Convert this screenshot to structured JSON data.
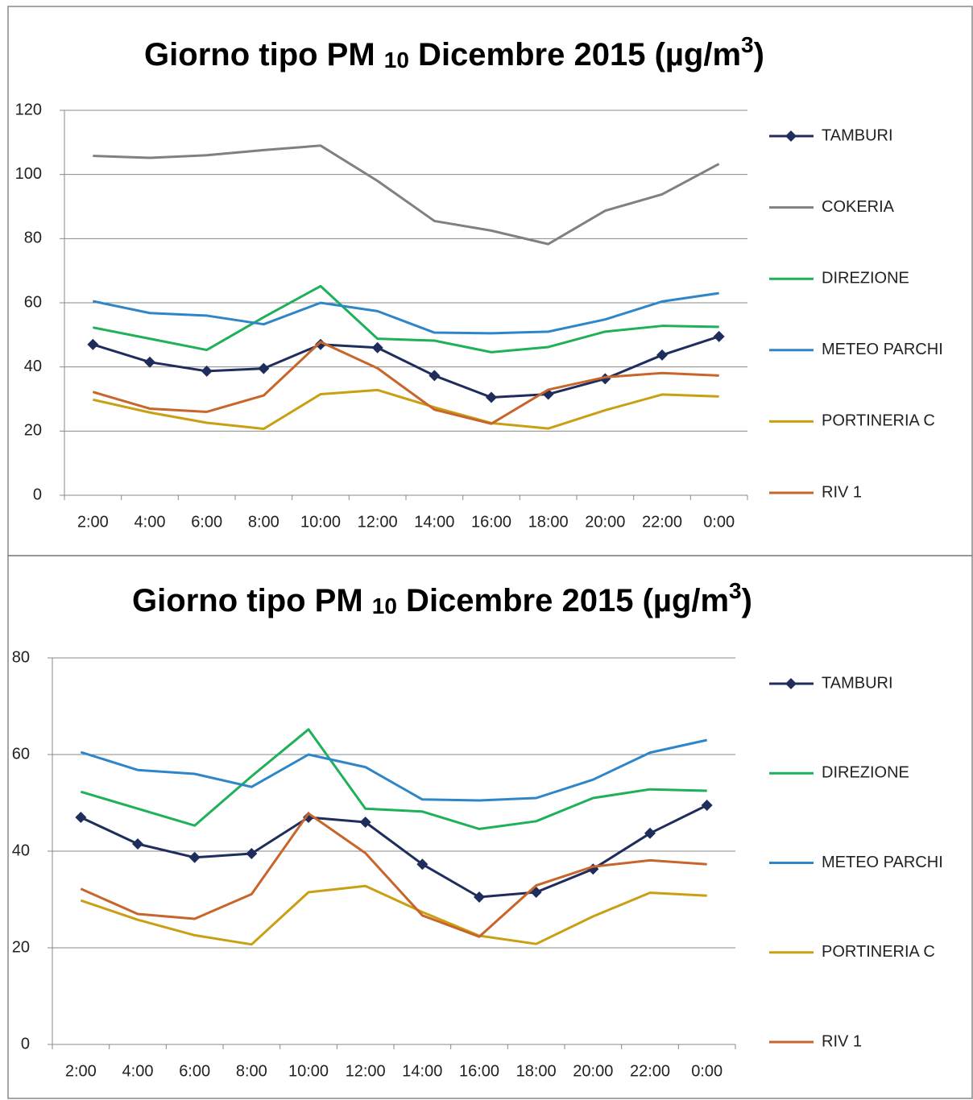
{
  "chart_data": [
    {
      "type": "line",
      "title": [
        "Giorno tipo PM ",
        "10",
        " Dicembre 2015 (µg/m",
        "3",
        ")"
      ],
      "categories": [
        "2:00",
        "4:00",
        "6:00",
        "8:00",
        "10:00",
        "12:00",
        "14:00",
        "16:00",
        "18:00",
        "20:00",
        "22:00",
        "0:00"
      ],
      "ylim": [
        0,
        120
      ],
      "yticks": [
        0,
        20,
        40,
        60,
        80,
        100,
        120
      ],
      "grid": true,
      "legend": "right",
      "series": [
        {
          "name": "TAMBURI",
          "color": "#1f2d5c",
          "marker": "diamond",
          "values": [
            47,
            41.5,
            38.7,
            39.5,
            47,
            46,
            37.3,
            30.5,
            31.5,
            36.3,
            43.7,
            49.5
          ]
        },
        {
          "name": "COKERIA",
          "color": "#808080",
          "values": [
            105.8,
            105.2,
            106,
            107.6,
            109,
            98,
            85.5,
            82.5,
            78.3,
            88.7,
            93.8,
            103.3
          ]
        },
        {
          "name": "DIREZIONE",
          "color": "#1eb15a",
          "values": [
            52.3,
            48.8,
            45.3,
            55.5,
            65.2,
            48.8,
            48.2,
            44.6,
            46.2,
            51,
            52.8,
            52.5
          ]
        },
        {
          "name": "METEO PARCHI",
          "color": "#2e86c8",
          "values": [
            60.5,
            56.8,
            56,
            53.3,
            60,
            57.4,
            50.7,
            50.5,
            51,
            54.8,
            60.4,
            63
          ]
        },
        {
          "name": "PORTINERIA C",
          "color": "#c9a013",
          "values": [
            29.8,
            25.8,
            22.6,
            20.7,
            31.5,
            32.8,
            27.4,
            22.5,
            20.8,
            26.5,
            31.4,
            30.8
          ]
        },
        {
          "name": "RIV 1",
          "color": "#c8652a",
          "values": [
            32.2,
            27,
            26,
            31.1,
            47.8,
            39.6,
            26.7,
            22.3,
            32.9,
            36.8,
            38.1,
            37.3
          ]
        }
      ]
    },
    {
      "type": "line",
      "title": [
        "Giorno tipo PM ",
        "10",
        " Dicembre 2015 (µg/m",
        "3",
        ")"
      ],
      "categories": [
        "2:00",
        "4:00",
        "6:00",
        "8:00",
        "10:00",
        "12:00",
        "14:00",
        "16:00",
        "18:00",
        "20:00",
        "22:00",
        "0:00"
      ],
      "ylim": [
        0,
        80
      ],
      "yticks": [
        0,
        20,
        40,
        60,
        80
      ],
      "grid": true,
      "legend": "right",
      "series": [
        {
          "name": "TAMBURI",
          "color": "#1f2d5c",
          "marker": "diamond",
          "values": [
            47,
            41.5,
            38.7,
            39.5,
            47,
            46,
            37.3,
            30.5,
            31.5,
            36.3,
            43.7,
            49.5
          ]
        },
        {
          "name": "DIREZIONE",
          "color": "#1eb15a",
          "values": [
            52.3,
            48.8,
            45.3,
            55.5,
            65.2,
            48.8,
            48.2,
            44.6,
            46.2,
            51,
            52.8,
            52.5
          ]
        },
        {
          "name": "METEO PARCHI",
          "color": "#2e86c8",
          "values": [
            60.5,
            56.8,
            56,
            53.3,
            60,
            57.4,
            50.7,
            50.5,
            51,
            54.8,
            60.4,
            63
          ]
        },
        {
          "name": "PORTINERIA C",
          "color": "#c9a013",
          "values": [
            29.8,
            25.8,
            22.6,
            20.7,
            31.5,
            32.8,
            27.4,
            22.5,
            20.8,
            26.5,
            31.4,
            30.8
          ]
        },
        {
          "name": "RIV 1",
          "color": "#c8652a",
          "values": [
            32.2,
            27,
            26,
            31.1,
            47.8,
            39.6,
            26.7,
            22.3,
            32.9,
            36.8,
            38.1,
            37.3
          ]
        }
      ]
    }
  ]
}
